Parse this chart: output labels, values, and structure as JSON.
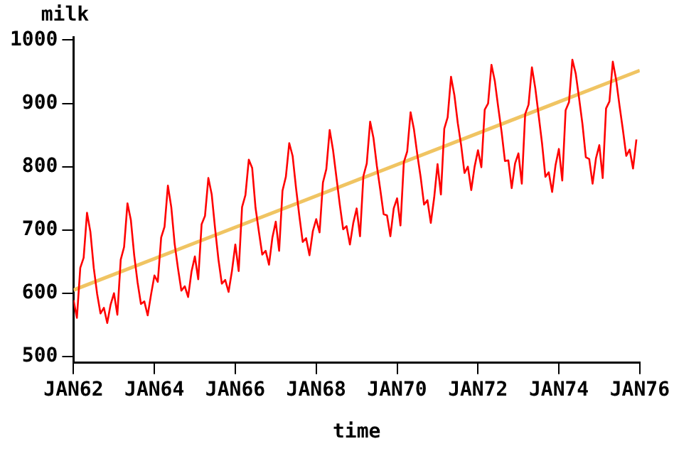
{
  "chart_data": {
    "type": "line",
    "xlabel": "time",
    "ylabel": "milk",
    "x": [
      "1962-01",
      "1962-02",
      "1962-03",
      "1962-04",
      "1962-05",
      "1962-06",
      "1962-07",
      "1962-08",
      "1962-09",
      "1962-10",
      "1962-11",
      "1962-12",
      "1963-01",
      "1963-02",
      "1963-03",
      "1963-04",
      "1963-05",
      "1963-06",
      "1963-07",
      "1963-08",
      "1963-09",
      "1963-10",
      "1963-11",
      "1963-12",
      "1964-01",
      "1964-02",
      "1964-03",
      "1964-04",
      "1964-05",
      "1964-06",
      "1964-07",
      "1964-08",
      "1964-09",
      "1964-10",
      "1964-11",
      "1964-12",
      "1965-01",
      "1965-02",
      "1965-03",
      "1965-04",
      "1965-05",
      "1965-06",
      "1965-07",
      "1965-08",
      "1965-09",
      "1965-10",
      "1965-11",
      "1965-12",
      "1966-01",
      "1966-02",
      "1966-03",
      "1966-04",
      "1966-05",
      "1966-06",
      "1966-07",
      "1966-08",
      "1966-09",
      "1966-10",
      "1966-11",
      "1966-12",
      "1967-01",
      "1967-02",
      "1967-03",
      "1967-04",
      "1967-05",
      "1967-06",
      "1967-07",
      "1967-08",
      "1967-09",
      "1967-10",
      "1967-11",
      "1967-12",
      "1968-01",
      "1968-02",
      "1968-03",
      "1968-04",
      "1968-05",
      "1968-06",
      "1968-07",
      "1968-08",
      "1968-09",
      "1968-10",
      "1968-11",
      "1968-12",
      "1969-01",
      "1969-02",
      "1969-03",
      "1969-04",
      "1969-05",
      "1969-06",
      "1969-07",
      "1969-08",
      "1969-09",
      "1969-10",
      "1969-11",
      "1969-12",
      "1970-01",
      "1970-02",
      "1970-03",
      "1970-04",
      "1970-05",
      "1970-06",
      "1970-07",
      "1970-08",
      "1970-09",
      "1970-10",
      "1970-11",
      "1970-12",
      "1971-01",
      "1971-02",
      "1971-03",
      "1971-04",
      "1971-05",
      "1971-06",
      "1971-07",
      "1971-08",
      "1971-09",
      "1971-10",
      "1971-11",
      "1971-12",
      "1972-01",
      "1972-02",
      "1972-03",
      "1972-04",
      "1972-05",
      "1972-06",
      "1972-07",
      "1972-08",
      "1972-09",
      "1972-10",
      "1972-11",
      "1972-12",
      "1973-01",
      "1973-02",
      "1973-03",
      "1973-04",
      "1973-05",
      "1973-06",
      "1973-07",
      "1973-08",
      "1973-09",
      "1973-10",
      "1973-11",
      "1973-12",
      "1974-01",
      "1974-02",
      "1974-03",
      "1974-04",
      "1974-05",
      "1974-06",
      "1974-07",
      "1974-08",
      "1974-09",
      "1974-10",
      "1974-11",
      "1974-12",
      "1975-01",
      "1975-02",
      "1975-03",
      "1975-04",
      "1975-05",
      "1975-06",
      "1975-07",
      "1975-08",
      "1975-09",
      "1975-10",
      "1975-11",
      "1975-12"
    ],
    "series": [
      {
        "color": "#ff0000",
        "values": [
          589,
          561,
          640,
          656,
          727,
          697,
          640,
          599,
          568,
          577,
          553,
          582,
          600,
          566,
          653,
          673,
          742,
          716,
          660,
          617,
          583,
          587,
          565,
          598,
          628,
          618,
          688,
          705,
          770,
          736,
          678,
          639,
          604,
          611,
          594,
          634,
          658,
          622,
          709,
          722,
          782,
          756,
          702,
          653,
          615,
          621,
          602,
          635,
          677,
          635,
          736,
          755,
          811,
          798,
          735,
          697,
          661,
          667,
          645,
          688,
          713,
          667,
          762,
          784,
          837,
          817,
          767,
          722,
          681,
          687,
          660,
          698,
          717,
          696,
          775,
          796,
          858,
          826,
          783,
          740,
          701,
          706,
          677,
          711,
          734,
          690,
          785,
          805,
          871,
          845,
          801,
          764,
          725,
          723,
          690,
          734,
          750,
          707,
          807,
          824,
          886,
          859,
          819,
          783,
          740,
          747,
          711,
          751,
          804,
          756,
          860,
          878,
          942,
          913,
          869,
          834,
          790,
          800,
          763,
          800,
          826,
          799,
          890,
          900,
          961,
          935,
          894,
          855,
          809,
          810,
          766,
          805,
          821,
          773,
          883,
          898,
          957,
          924,
          881,
          837,
          784,
          791,
          760,
          802,
          828,
          778,
          889,
          902,
          969,
          947,
          908,
          867,
          815,
          812,
          773,
          813,
          834,
          782,
          892,
          903,
          966,
          937,
          896,
          858,
          817,
          827,
          797,
          843
        ]
      },
      {
        "type": "line",
        "color": "#f0c462",
        "x": [
          "1962-01",
          "1976-01"
        ],
        "values": [
          605,
          952
        ]
      }
    ],
    "xlim": [
      "1962-01",
      "1976-01"
    ],
    "xticks": [
      {
        "value": "1962-01",
        "label": "JAN62"
      },
      {
        "value": "1964-01",
        "label": "JAN64"
      },
      {
        "value": "1966-01",
        "label": "JAN66"
      },
      {
        "value": "1968-01",
        "label": "JAN68"
      },
      {
        "value": "1970-01",
        "label": "JAN70"
      },
      {
        "value": "1972-01",
        "label": "JAN72"
      },
      {
        "value": "1974-01",
        "label": "JAN74"
      },
      {
        "value": "1976-01",
        "label": "JAN76"
      }
    ],
    "ylim": [
      490,
      1005
    ],
    "yticks": [
      500,
      600,
      700,
      800,
      900,
      1000
    ],
    "grid": false,
    "legend": false,
    "marker": "none",
    "line_style": "solid"
  }
}
